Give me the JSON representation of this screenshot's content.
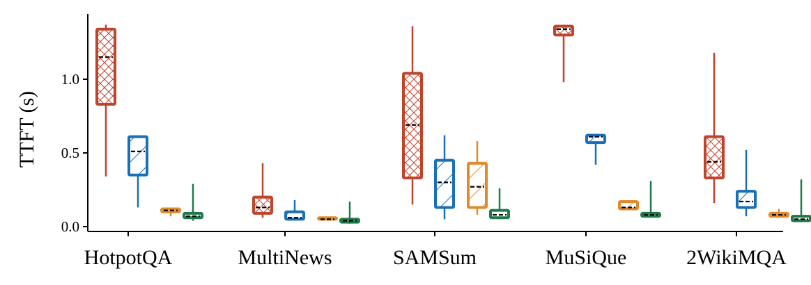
{
  "chart_data": {
    "type": "box",
    "title": "",
    "xlabel": "",
    "ylabel": "TTFT (s)",
    "ylim": [
      -0.03,
      1.42
    ],
    "yticks": [
      0.0,
      0.5,
      1.0
    ],
    "ytick_labels": [
      "0.0",
      "0.5",
      "1.0"
    ],
    "grid": false,
    "legend": "none",
    "categories": [
      "HotpotQA",
      "MultiNews",
      "SAMSum",
      "MuSiQue",
      "2WikiMQA"
    ],
    "series": [
      {
        "color": "#c0432b",
        "hatch": "crosshatch",
        "boxes": [
          {
            "whislo": 0.34,
            "q1": 0.83,
            "med": 1.15,
            "q3": 1.34,
            "whishi": 1.37
          },
          {
            "whislo": 0.06,
            "q1": 0.09,
            "med": 0.13,
            "q3": 0.2,
            "whishi": 0.43
          },
          {
            "whislo": 0.15,
            "q1": 0.33,
            "med": 0.69,
            "q3": 1.04,
            "whishi": 1.36
          },
          {
            "whislo": 0.98,
            "q1": 1.3,
            "med": 1.34,
            "q3": 1.36,
            "whishi": 1.37
          },
          {
            "whislo": 0.16,
            "q1": 0.33,
            "med": 0.44,
            "q3": 0.61,
            "whishi": 1.18
          }
        ]
      },
      {
        "color": "#1a70b7",
        "hatch": "diagonal",
        "boxes": [
          {
            "whislo": 0.13,
            "q1": 0.35,
            "med": 0.51,
            "q3": 0.61,
            "whishi": 0.62
          },
          {
            "whislo": 0.04,
            "q1": 0.05,
            "med": 0.06,
            "q3": 0.1,
            "whishi": 0.18
          },
          {
            "whislo": 0.05,
            "q1": 0.13,
            "med": 0.3,
            "q3": 0.45,
            "whishi": 0.62
          },
          {
            "whislo": 0.42,
            "q1": 0.57,
            "med": 0.61,
            "q3": 0.62,
            "whishi": 0.62
          },
          {
            "whislo": 0.07,
            "q1": 0.13,
            "med": 0.17,
            "q3": 0.24,
            "whishi": 0.52
          }
        ]
      },
      {
        "color": "#e08a2c",
        "hatch": "diagonal",
        "boxes": [
          {
            "whislo": 0.07,
            "q1": 0.1,
            "med": 0.11,
            "q3": 0.12,
            "whishi": 0.12
          },
          {
            "whislo": 0.04,
            "q1": 0.05,
            "med": 0.05,
            "q3": 0.06,
            "whishi": 0.06
          },
          {
            "whislo": 0.08,
            "q1": 0.13,
            "med": 0.27,
            "q3": 0.43,
            "whishi": 0.58
          },
          {
            "whislo": 0.11,
            "q1": 0.12,
            "med": 0.13,
            "q3": 0.17,
            "whishi": 0.18
          },
          {
            "whislo": 0.06,
            "q1": 0.07,
            "med": 0.08,
            "q3": 0.09,
            "whishi": 0.12
          }
        ]
      },
      {
        "color": "#1e7a4a",
        "hatch": "none",
        "boxes": [
          {
            "whislo": 0.04,
            "q1": 0.06,
            "med": 0.07,
            "q3": 0.09,
            "whishi": 0.29
          },
          {
            "whislo": 0.02,
            "q1": 0.03,
            "med": 0.04,
            "q3": 0.05,
            "whishi": 0.17
          },
          {
            "whislo": 0.05,
            "q1": 0.06,
            "med": 0.08,
            "q3": 0.11,
            "whishi": 0.26
          },
          {
            "whislo": 0.07,
            "q1": 0.07,
            "med": 0.08,
            "q3": 0.09,
            "whishi": 0.31
          },
          {
            "whislo": 0.03,
            "q1": 0.04,
            "med": 0.05,
            "q3": 0.07,
            "whishi": 0.32
          }
        ]
      }
    ]
  }
}
